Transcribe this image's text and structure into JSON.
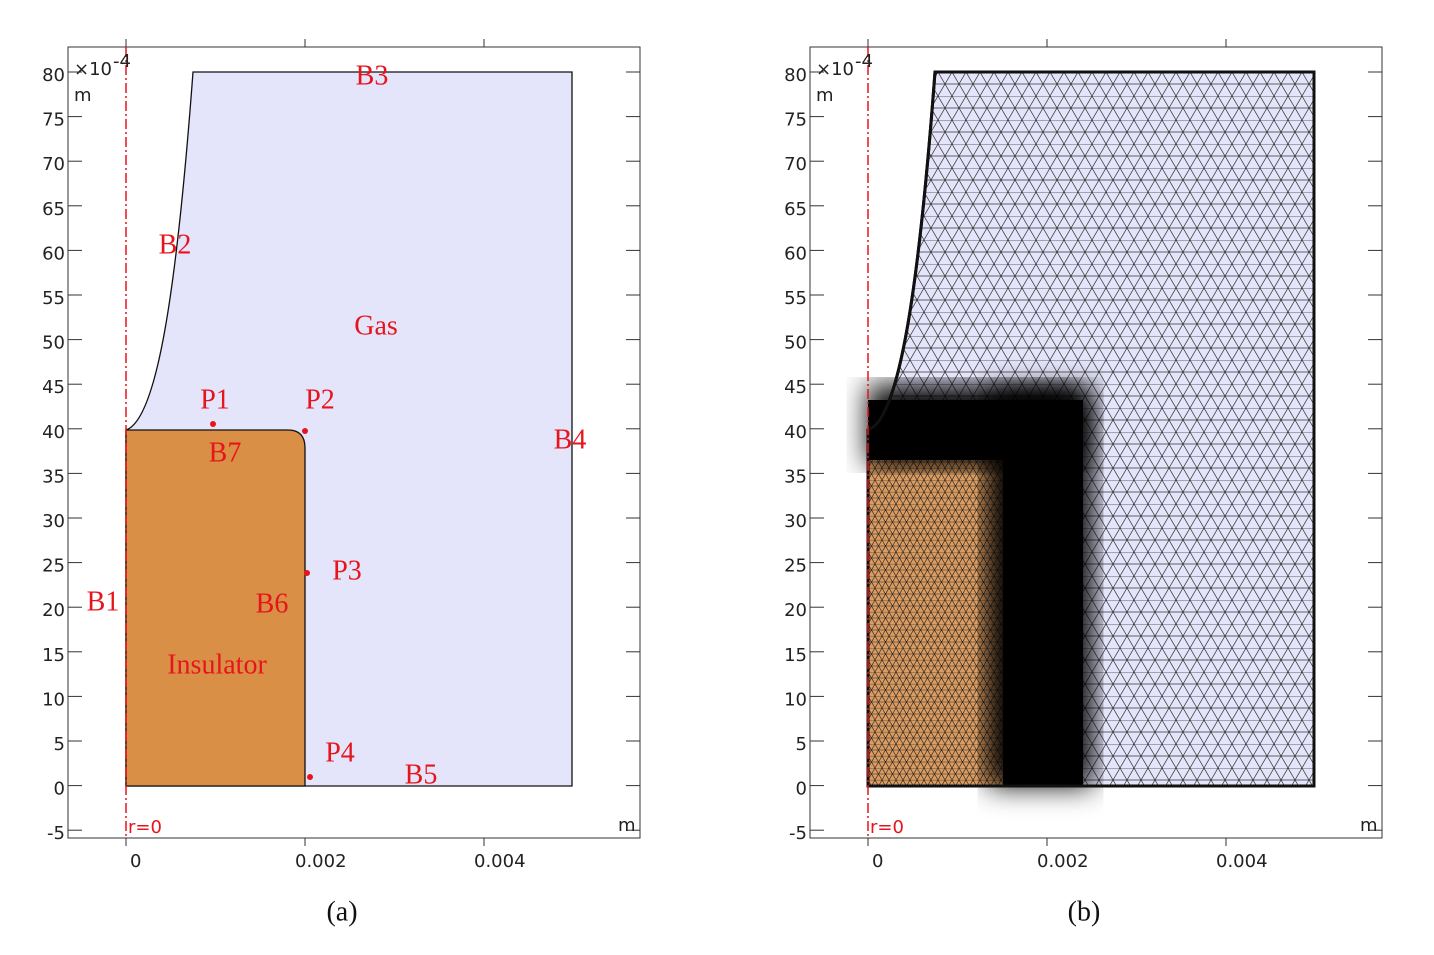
{
  "axes": {
    "yticks": [
      "80",
      "75",
      "70",
      "65",
      "60",
      "55",
      "50",
      "45",
      "40",
      "35",
      "30",
      "25",
      "20",
      "15",
      "10",
      "5",
      "0",
      "-5"
    ],
    "xticks": [
      "0",
      "0.002",
      "0.004"
    ],
    "scale": "×10",
    "exponent": "-4",
    "unit": "m",
    "origin_label": "r=0"
  },
  "panels": [
    {
      "caption": "(a)",
      "labels": [
        "B1",
        "B2",
        "B3",
        "B4",
        "B5",
        "B6",
        "B7",
        "P1",
        "P2",
        "P3",
        "P4",
        "Gas",
        "Insulator"
      ]
    },
    {
      "caption": "(b)"
    }
  ]
}
